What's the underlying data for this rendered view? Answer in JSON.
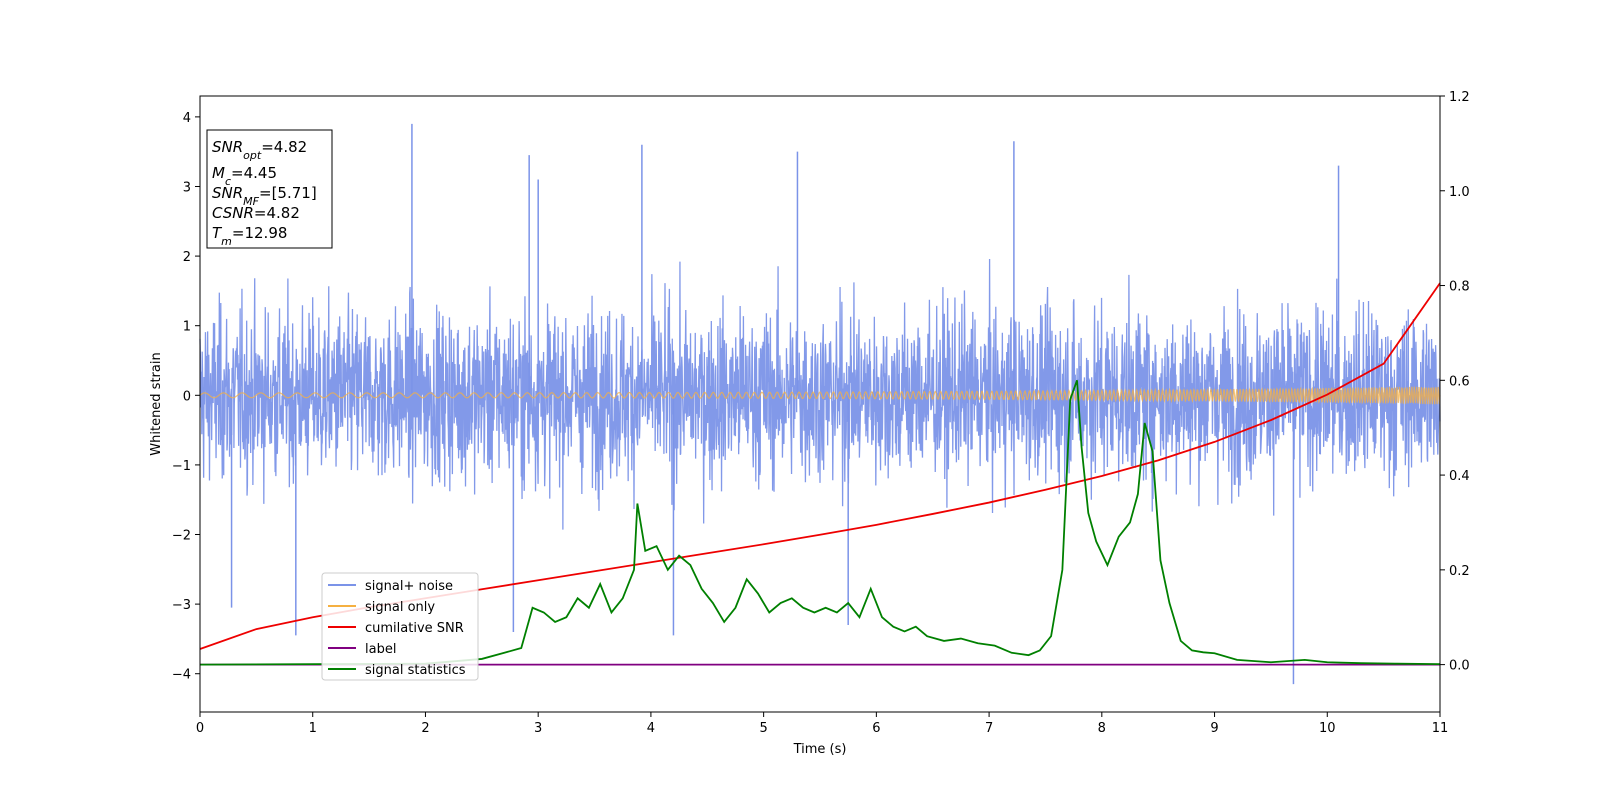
{
  "chart_data": {
    "type": "line",
    "title": "",
    "xlabel": "Time (s)",
    "ylabel": "Whitened strain",
    "xlim": [
      0,
      11
    ],
    "ylim": [
      -4.55,
      4.3
    ],
    "y2lim": [
      -0.1,
      1.2
    ],
    "xticks": [
      "0",
      "1",
      "2",
      "3",
      "4",
      "5",
      "6",
      "7",
      "8",
      "9",
      "10",
      "11"
    ],
    "yticks": [
      "−4",
      "−3",
      "−2",
      "−1",
      "0",
      "1",
      "2",
      "3",
      "4"
    ],
    "y2ticks": [
      "0.0",
      "0.2",
      "0.4",
      "0.6",
      "0.8",
      "1.0",
      "1.2"
    ],
    "grid": false,
    "annotation": {
      "lines": [
        {
          "italic": "SNR",
          "sub": "opt",
          "rest": "=4.82"
        },
        {
          "italic": "M",
          "sub": "c",
          "rest": "=4.45"
        },
        {
          "italic": "SNR",
          "sub": "MF",
          "rest": "=[5.71]"
        },
        {
          "italic": "CSNR",
          "sub": "",
          "rest": "=4.82"
        },
        {
          "italic": "T",
          "sub": "m",
          "rest": "=12.98"
        }
      ],
      "position": "top-left"
    },
    "legend": {
      "position": "lower-left",
      "entries": [
        {
          "label": "signal+ noise",
          "color": "#7b93e8"
        },
        {
          "label": "signal only",
          "color": "#f5b041"
        },
        {
          "label": "cumilative SNR",
          "color": "#ee0000"
        },
        {
          "label": "label",
          "color": "#800080"
        },
        {
          "label": "signal statistics",
          "color": "#008000"
        }
      ]
    },
    "series": [
      {
        "name": "signal+ noise",
        "axis": "left",
        "kind": "noise",
        "note": "whitened noise, typical range about -2.2 to 2.4, peaks from -4.2 to 3.9",
        "spikes_high": [
          [
            1.88,
            3.9
          ],
          [
            3.92,
            3.6
          ],
          [
            7.22,
            3.65
          ],
          [
            5.3,
            3.5
          ],
          [
            2.92,
            3.45
          ],
          [
            10.1,
            3.3
          ],
          [
            3.0,
            3.1
          ]
        ],
        "spikes_low": [
          [
            9.7,
            -4.15
          ],
          [
            4.2,
            -3.45
          ],
          [
            0.85,
            -3.45
          ],
          [
            2.78,
            -3.4
          ],
          [
            5.75,
            -3.3
          ],
          [
            0.28,
            -3.05
          ]
        ]
      },
      {
        "name": "signal only",
        "axis": "left",
        "kind": "chirp",
        "note": "sinusoid around 0, amplitude growing from about 0.04 to 0.13 at t=11"
      },
      {
        "name": "cumilative SNR",
        "axis": "right",
        "x": [
          0,
          0.5,
          1,
          1.5,
          2,
          2.5,
          3,
          3.5,
          4,
          4.5,
          5,
          5.5,
          6,
          6.5,
          7,
          7.5,
          8,
          8.5,
          9,
          9.5,
          10,
          10.5,
          11
        ],
        "y": [
          0.033,
          0.075,
          0.1,
          0.121,
          0.14,
          0.159,
          0.178,
          0.197,
          0.216,
          0.235,
          0.254,
          0.274,
          0.295,
          0.318,
          0.342,
          0.369,
          0.398,
          0.431,
          0.47,
          0.516,
          0.57,
          0.635,
          0.805
        ]
      },
      {
        "name": "label",
        "axis": "right",
        "x": [
          0,
          11
        ],
        "y": [
          0.0,
          0.0
        ]
      },
      {
        "name": "signal statistics",
        "axis": "right",
        "x": [
          0,
          1,
          2,
          2.5,
          2.7,
          2.85,
          2.95,
          3.05,
          3.15,
          3.25,
          3.35,
          3.45,
          3.55,
          3.65,
          3.75,
          3.85,
          3.88,
          3.95,
          4.05,
          4.15,
          4.25,
          4.35,
          4.45,
          4.55,
          4.65,
          4.75,
          4.85,
          4.95,
          5.05,
          5.15,
          5.25,
          5.35,
          5.45,
          5.55,
          5.65,
          5.75,
          5.85,
          5.95,
          6.05,
          6.15,
          6.25,
          6.35,
          6.45,
          6.6,
          6.75,
          6.9,
          7.05,
          7.2,
          7.35,
          7.45,
          7.55,
          7.65,
          7.72,
          7.78,
          7.82,
          7.88,
          7.95,
          8.05,
          8.15,
          8.25,
          8.32,
          8.38,
          8.45,
          8.52,
          8.6,
          8.7,
          8.8,
          8.9,
          9.0,
          9.2,
          9.5,
          9.8,
          10.0,
          10.3,
          10.6,
          11
        ],
        "y": [
          0.0,
          0.001,
          0.002,
          0.012,
          0.025,
          0.035,
          0.12,
          0.11,
          0.09,
          0.1,
          0.14,
          0.12,
          0.17,
          0.11,
          0.14,
          0.2,
          0.34,
          0.24,
          0.25,
          0.2,
          0.23,
          0.21,
          0.16,
          0.13,
          0.09,
          0.12,
          0.18,
          0.15,
          0.11,
          0.13,
          0.14,
          0.12,
          0.11,
          0.12,
          0.11,
          0.13,
          0.1,
          0.16,
          0.1,
          0.08,
          0.07,
          0.08,
          0.06,
          0.05,
          0.055,
          0.045,
          0.04,
          0.025,
          0.02,
          0.03,
          0.06,
          0.2,
          0.56,
          0.6,
          0.46,
          0.32,
          0.26,
          0.21,
          0.27,
          0.3,
          0.36,
          0.51,
          0.45,
          0.22,
          0.13,
          0.05,
          0.03,
          0.026,
          0.024,
          0.01,
          0.005,
          0.01,
          0.005,
          0.003,
          0.002,
          0.001
        ]
      }
    ]
  }
}
